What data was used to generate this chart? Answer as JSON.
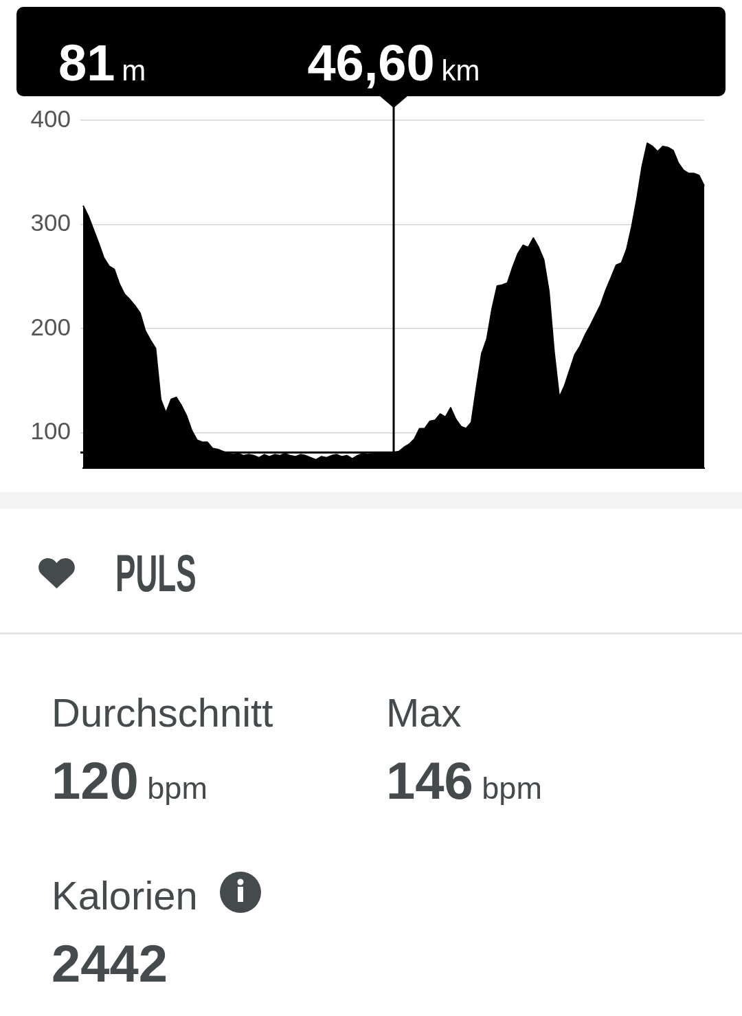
{
  "chart_data": [
    {
      "type": "area",
      "categories": [
        null,
        null,
        null,
        null,
        null,
        null,
        null,
        null,
        null,
        null,
        null,
        null,
        null,
        null,
        null,
        null,
        null,
        null,
        null,
        null,
        null,
        null,
        null,
        null,
        null,
        null,
        null,
        null,
        null,
        null,
        null,
        null,
        null,
        null,
        null,
        null,
        null,
        null,
        null,
        null,
        null,
        null,
        null,
        null,
        null,
        null,
        null,
        null,
        null,
        null,
        null,
        null,
        null,
        null,
        null,
        null,
        null,
        null,
        null,
        null,
        null,
        null,
        null,
        null,
        null,
        null,
        null,
        null,
        null,
        null,
        null,
        null,
        null,
        null,
        null,
        null,
        null,
        null,
        null,
        null,
        null,
        null,
        null,
        null,
        null,
        null,
        null,
        null,
        null,
        null,
        null,
        null,
        null,
        null,
        null,
        null,
        null,
        null,
        null,
        null,
        null,
        null,
        null,
        null,
        null,
        null,
        null,
        null,
        null,
        null,
        null,
        null,
        null,
        null,
        null,
        null,
        null,
        null,
        null,
        null,
        null
      ],
      "values": [
        318,
        308,
        295,
        282,
        268,
        260,
        257,
        243,
        233,
        228,
        222,
        215,
        198,
        189,
        181,
        132,
        119,
        132,
        134,
        126,
        116,
        102,
        93,
        91,
        91,
        85,
        84,
        82,
        80,
        79,
        80,
        78,
        79,
        78,
        76,
        79,
        77,
        79,
        78,
        80,
        78,
        77,
        79,
        78,
        76,
        74,
        77,
        76,
        78,
        79,
        77,
        78,
        75,
        78,
        80,
        79,
        80,
        80,
        81,
        81,
        81,
        82,
        86,
        89,
        94,
        104,
        104,
        111,
        112,
        118,
        115,
        124,
        113,
        106,
        104,
        110,
        144,
        176,
        190,
        219,
        241,
        242,
        244,
        259,
        272,
        280,
        278,
        287,
        278,
        266,
        236,
        178,
        134,
        145,
        160,
        175,
        183,
        194,
        203,
        213,
        223,
        237,
        249,
        261,
        263,
        276,
        298,
        325,
        356,
        378,
        375,
        370,
        375,
        374,
        371,
        359,
        352,
        349,
        349,
        347,
        337
      ],
      "color": "#000000",
      "ylim": [
        66,
        400
      ],
      "yticks": [
        100,
        200,
        300,
        400
      ],
      "grid": "y",
      "tick_labels": "y",
      "marker": "none",
      "ref_lines": [
        {
          "axis": "y",
          "value": 81
        }
      ],
      "annotations": [
        "81m",
        "46,60km"
      ]
    },
    {
      "type": "other",
      "title": "PULS",
      "annotations": [
        "Durchschnitt",
        "120 bpm",
        "Max",
        "146 bpm",
        "Kalorien",
        "2442"
      ]
    }
  ]
}
